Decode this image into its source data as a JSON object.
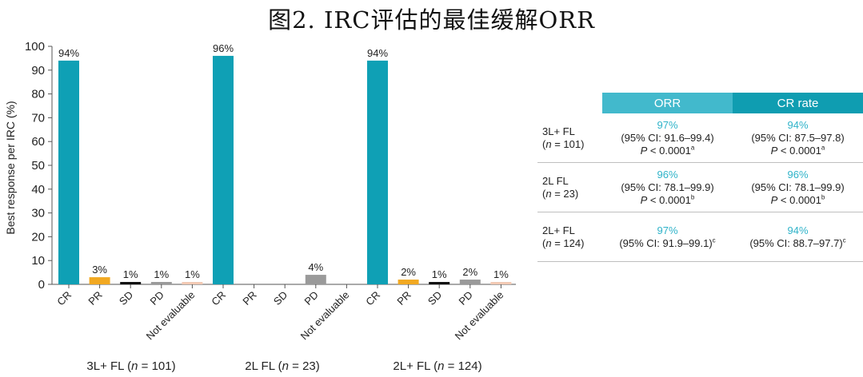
{
  "title": "图2. IRC评估的最佳缓解ORR",
  "colors": {
    "CR": "#0fa0b5",
    "PR": "#f2a922",
    "SD": "#111111",
    "PD": "#9a9a9a",
    "Not evaluable": "#f2c9b4"
  },
  "chart_data": {
    "type": "bar",
    "ylabel": "Best response per IRC (%)",
    "ylim": [
      0,
      100
    ],
    "yticks": [
      0,
      10,
      20,
      30,
      40,
      50,
      60,
      70,
      80,
      90,
      100
    ],
    "grid": false,
    "groups": [
      {
        "label_pre": "3L+ FL (",
        "label_n": "n",
        "label_post": " = 101)",
        "categories": [
          "CR",
          "PR",
          "SD",
          "PD",
          "Not evaluable"
        ],
        "values": [
          94,
          3,
          1,
          1,
          1
        ],
        "labels": [
          "94%",
          "3%",
          "1%",
          "1%",
          "1%"
        ]
      },
      {
        "label_pre": "2L FL (",
        "label_n": "n",
        "label_post": " = 23)",
        "categories": [
          "CR",
          "PR",
          "SD",
          "PD",
          "Not evaluable"
        ],
        "values": [
          96,
          0,
          0,
          4,
          0
        ],
        "labels": [
          "96%",
          "",
          "",
          "4%",
          ""
        ]
      },
      {
        "label_pre": "2L+ FL (",
        "label_n": "n",
        "label_post": " = 124)",
        "categories": [
          "CR",
          "PR",
          "SD",
          "PD",
          "Not evaluable"
        ],
        "values": [
          94,
          2,
          1,
          2,
          1
        ],
        "labels": [
          "94%",
          "2%",
          "1%",
          "2%",
          "1%"
        ]
      }
    ]
  },
  "table": {
    "headers": [
      "ORR",
      "CR rate"
    ],
    "rows": [
      {
        "cohort": "3L+ FL",
        "n_label": "n",
        "n_value": " = 101)",
        "orr": {
          "pct": "97%",
          "ci": "(95% CI: 91.6–99.4)",
          "p": " < 0.0001",
          "sup": "a"
        },
        "cr": {
          "pct": "94%",
          "ci": "(95% CI: 87.5–97.8)",
          "p": " < 0.0001",
          "sup": "a"
        }
      },
      {
        "cohort": "2L FL",
        "n_label": "n",
        "n_value": " = 23)",
        "orr": {
          "pct": "96%",
          "ci": "(95% CI: 78.1–99.9)",
          "p": " < 0.0001",
          "sup": "b"
        },
        "cr": {
          "pct": "96%",
          "ci": "(95% CI: 78.1–99.9)",
          "p": " < 0.0001",
          "sup": "b"
        }
      },
      {
        "cohort": "2L+ FL",
        "n_label": "n",
        "n_value": " = 124)",
        "orr": {
          "pct": "97%",
          "ci": "(95% CI: 91.9–99.1)",
          "p": "",
          "sup": "c"
        },
        "cr": {
          "pct": "94%",
          "ci": "(95% CI: 88.7–97.7)",
          "p": "",
          "sup": "c"
        }
      }
    ]
  }
}
